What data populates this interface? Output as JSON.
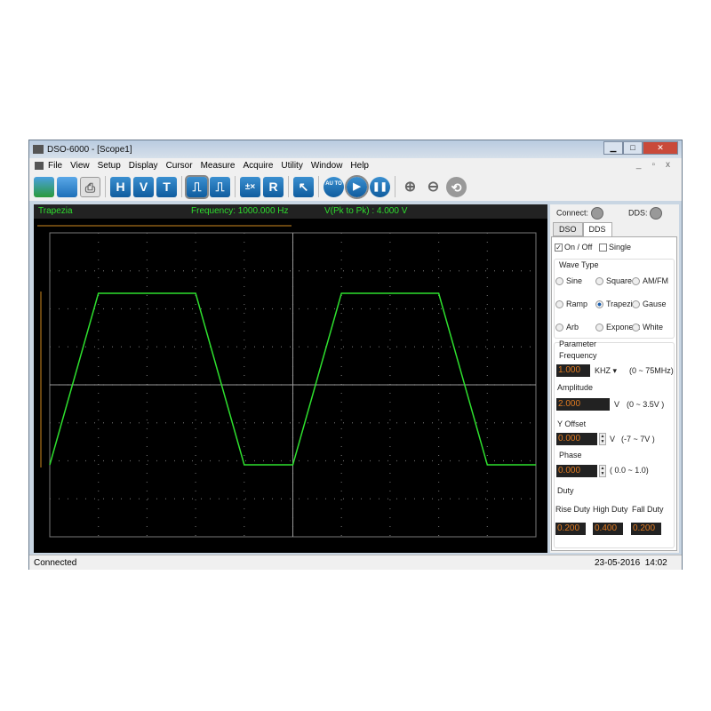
{
  "window": {
    "title": "DSO-6000 - [Scope1]"
  },
  "menu": [
    "File",
    "View",
    "Setup",
    "Display",
    "Cursor",
    "Measure",
    "Acquire",
    "Utility",
    "Window",
    "Help"
  ],
  "toolbar": {
    "icons": [
      "open-icon",
      "save-icon",
      "print-icon",
      "h-icon",
      "v-icon",
      "t-icon",
      "pulse-icon",
      "pulse2-icon",
      "math-icon",
      "r-icon",
      "cursor-icon",
      "auto-icon",
      "play-icon",
      "pause-icon",
      "zoom-in-icon",
      "zoom-out-icon",
      "reset-icon"
    ],
    "labels": {
      "h": "H",
      "v": "V",
      "t": "T",
      "r": "R",
      "auto": "AU TO"
    }
  },
  "scope": {
    "wave_name": "Trapezia",
    "frequency": "Frequency: 1000.000 Hz",
    "vpp": "V(Pk to Pk) : 4.000 V",
    "trace_color": "#2ee02e",
    "grid_divs_x": 10,
    "grid_divs_y": 8
  },
  "panel": {
    "connect": "Connect:",
    "dds": "DDS:",
    "tabs": [
      "DSO",
      "DDS"
    ],
    "active_tab": "DDS",
    "on_off": "On / Off",
    "on_off_checked": true,
    "single": "Single",
    "single_checked": false,
    "wave_type_label": "Wave Type",
    "wave_types": [
      "Sine",
      "Square",
      "AM/FM",
      "Ramp",
      "Trapezia",
      "Gause",
      "Arb",
      "Exponent",
      "White"
    ],
    "selected_wave": "Trapezia",
    "parameter_label": "Parameter",
    "frequency_label": "Frequency",
    "frequency": "1.000",
    "frequency_unit": "KHZ",
    "frequency_range": "(0 ~ 75MHz)",
    "amplitude_label": "Amplitude",
    "amplitude": "2.000",
    "amplitude_unit": "V",
    "amplitude_range": "(0 ~ 3.5V )",
    "offset_label": "Y Offset",
    "offset": "0.000",
    "offset_unit": "V",
    "offset_range": "(-7 ~ 7V )",
    "phase_label": "Phase",
    "phase": "0.000",
    "phase_range": "( 0.0 ~ 1.0)",
    "duty_label": "Duty",
    "rise_label": "Rise Duty",
    "high_label": "High Duty",
    "fall_label": "Fall Duty",
    "rise": "0.200",
    "high": "0.400",
    "fall": "0.200"
  },
  "status": {
    "left": "Connected",
    "datetime": "23-05-2016  14:02"
  }
}
